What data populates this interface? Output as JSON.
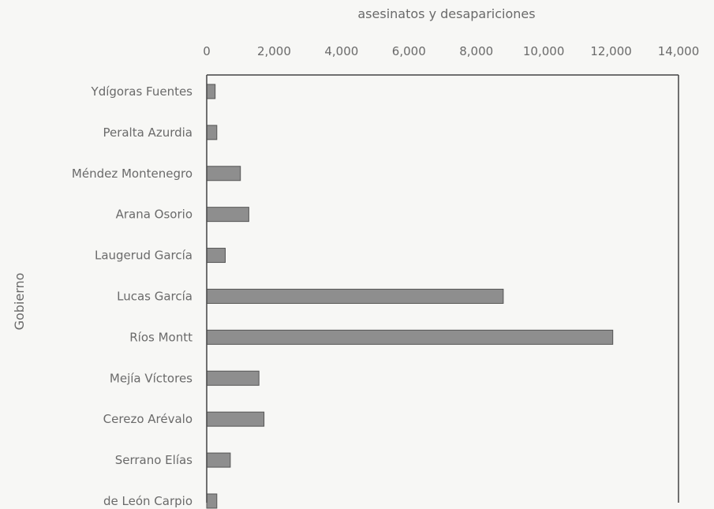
{
  "chart_data": {
    "type": "bar",
    "orientation": "horizontal",
    "xlabel": "asesinatos y desapariciones",
    "ylabel": "Gobierno",
    "x_axis_position": "top",
    "xlim": [
      0,
      14000
    ],
    "xticks": [
      "0",
      "2,000",
      "4,000",
      "6,000",
      "8,000",
      "10,000",
      "12,000",
      "14,000"
    ],
    "grid": false,
    "categories": [
      "Ydígoras Fuentes",
      "Peralta Azurdia",
      "Méndez Montenegro",
      "Arana Osorio",
      "Laugerud García",
      "Lucas García",
      "Ríos Montt",
      "Mejía Víctores",
      "Cerezo Arévalo",
      "Serrano Elías",
      "de León Carpio"
    ],
    "values": [
      250,
      300,
      1000,
      1250,
      550,
      8800,
      12050,
      1550,
      1700,
      700,
      300
    ],
    "colors": {
      "bar": "#8e8e8e",
      "bar_stroke": "#555555",
      "axis": "#444444",
      "text": "#6a6a6a"
    }
  }
}
